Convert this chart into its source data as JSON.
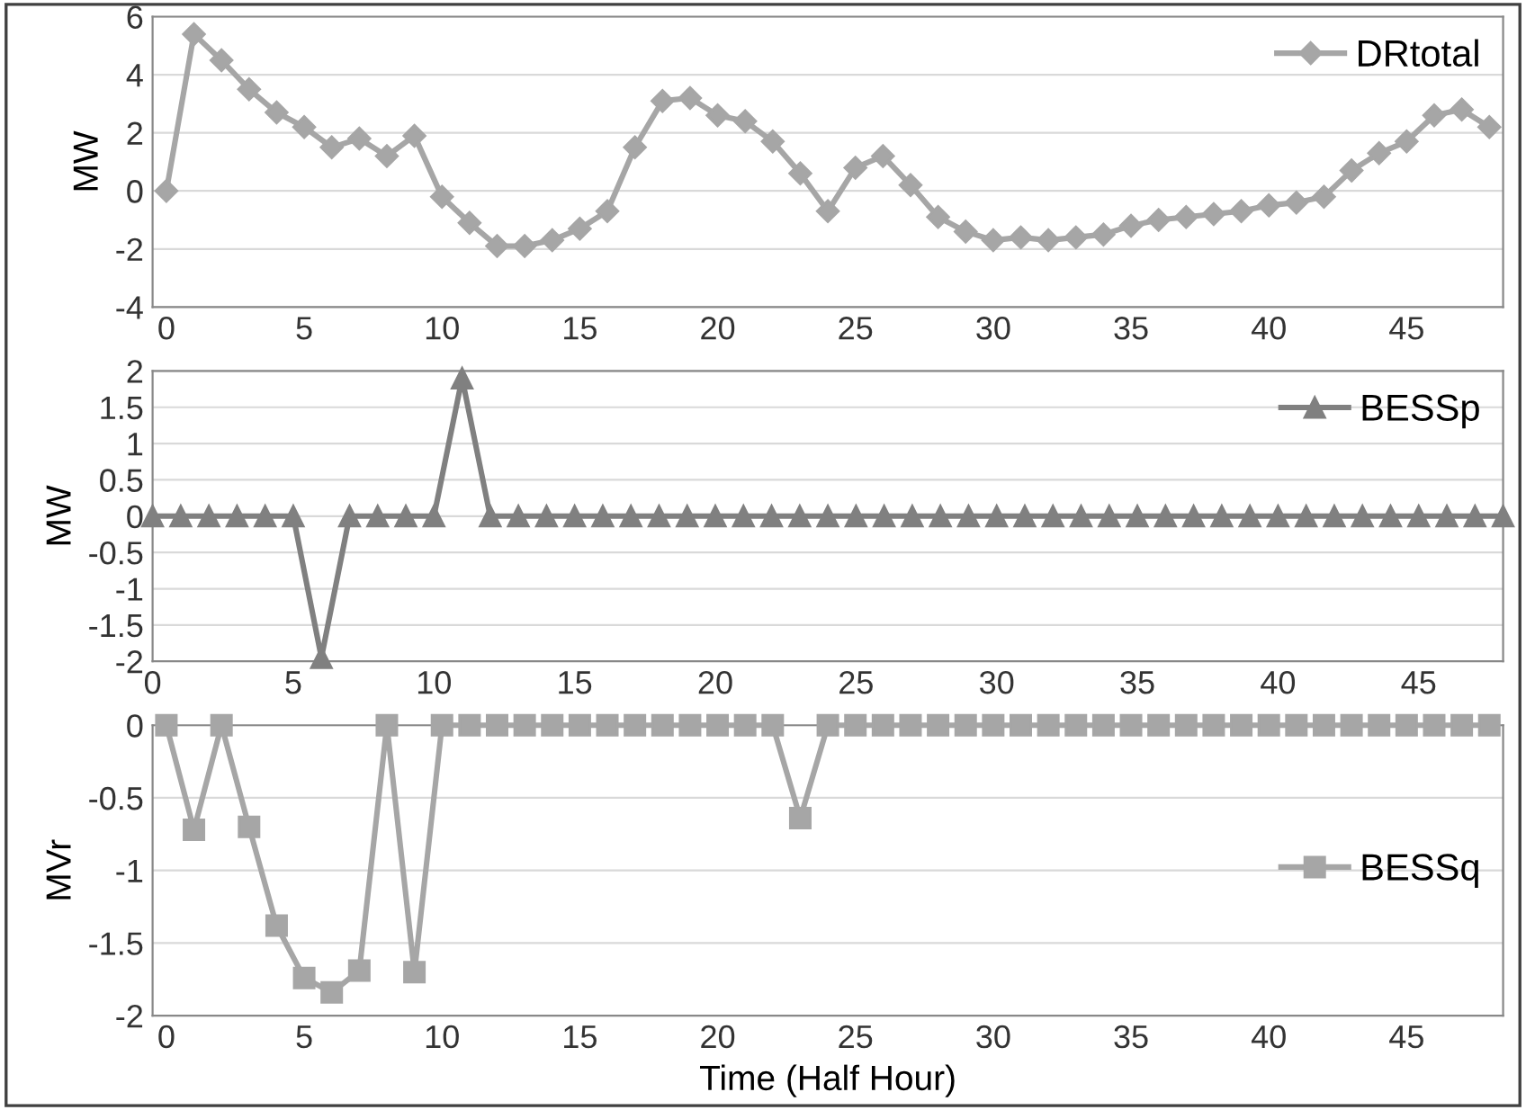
{
  "chart_data": [
    {
      "type": "line",
      "ylabel": "MW",
      "x": [
        0,
        1,
        2,
        3,
        4,
        5,
        6,
        7,
        8,
        9,
        10,
        11,
        12,
        13,
        14,
        15,
        16,
        17,
        18,
        19,
        20,
        21,
        22,
        23,
        24,
        25,
        26,
        27,
        28,
        29,
        30,
        31,
        32,
        33,
        34,
        35,
        36,
        37,
        38,
        39,
        40,
        41,
        42,
        43,
        44,
        45,
        46,
        47,
        48
      ],
      "series": [
        {
          "name": "DRtotal",
          "color": "#a6a6a6",
          "marker": "diamond",
          "values": [
            0,
            5.4,
            4.5,
            3.5,
            2.7,
            2.2,
            1.5,
            1.8,
            1.2,
            1.9,
            -0.2,
            -1.1,
            -1.9,
            -1.9,
            -1.7,
            -1.3,
            -0.7,
            1.5,
            3.1,
            3.2,
            2.6,
            2.4,
            1.7,
            0.6,
            -0.7,
            0.8,
            1.2,
            0.2,
            -0.9,
            -1.4,
            -1.7,
            -1.6,
            -1.7,
            -1.6,
            -1.5,
            -1.2,
            -1.0,
            -0.9,
            -0.8,
            -0.7,
            -0.5,
            -0.4,
            -0.2,
            0.7,
            1.3,
            1.7,
            2.6,
            2.8,
            2.2
          ]
        }
      ],
      "xlim": [
        -0.5,
        48.5
      ],
      "xticks": [
        0,
        5,
        10,
        15,
        20,
        25,
        30,
        35,
        40,
        45
      ],
      "ylim": [
        -4,
        6
      ],
      "yticks": [
        -4,
        -2,
        0,
        2,
        4,
        6
      ],
      "grid": "y",
      "legend": "top right"
    },
    {
      "type": "line",
      "ylabel": "MW",
      "x": [
        0,
        1,
        2,
        3,
        4,
        5,
        6,
        7,
        8,
        9,
        10,
        11,
        12,
        13,
        14,
        15,
        16,
        17,
        18,
        19,
        20,
        21,
        22,
        23,
        24,
        25,
        26,
        27,
        28,
        29,
        30,
        31,
        32,
        33,
        34,
        35,
        36,
        37,
        38,
        39,
        40,
        41,
        42,
        43,
        44,
        45,
        46,
        47,
        48
      ],
      "series": [
        {
          "name": "BESSp",
          "color": "#808080",
          "marker": "triangle",
          "values": [
            0,
            0,
            0,
            0,
            0,
            0,
            -1.95,
            0,
            0,
            0,
            0,
            1.9,
            0,
            0,
            0,
            0,
            0,
            0,
            0,
            0,
            0,
            0,
            0,
            0,
            0,
            0,
            0,
            0,
            0,
            0,
            0,
            0,
            0,
            0,
            0,
            0,
            0,
            0,
            0,
            0,
            0,
            0,
            0,
            0,
            0,
            0,
            0,
            0,
            0
          ]
        }
      ],
      "xlim": [
        0,
        48
      ],
      "xticks": [
        0,
        5,
        10,
        15,
        20,
        25,
        30,
        35,
        40,
        45
      ],
      "ylim": [
        -2,
        2
      ],
      "yticks": [
        -2,
        -1.5,
        -1,
        -0.5,
        0,
        0.5,
        1,
        1.5,
        2
      ],
      "grid": "y",
      "legend": "top right"
    },
    {
      "type": "line",
      "ylabel": "MVr",
      "xlabel": "Time (Half Hour)",
      "x": [
        0,
        1,
        2,
        3,
        4,
        5,
        6,
        7,
        8,
        9,
        10,
        11,
        12,
        13,
        14,
        15,
        16,
        17,
        18,
        19,
        20,
        21,
        22,
        23,
        24,
        25,
        26,
        27,
        28,
        29,
        30,
        31,
        32,
        33,
        34,
        35,
        36,
        37,
        38,
        39,
        40,
        41,
        42,
        43,
        44,
        45,
        46,
        47,
        48
      ],
      "series": [
        {
          "name": "BESSq",
          "color": "#a6a6a6",
          "marker": "square",
          "values": [
            0,
            -0.72,
            0,
            -0.7,
            -1.38,
            -1.74,
            -1.84,
            -1.69,
            0,
            -1.7,
            0,
            0,
            0,
            0,
            0,
            0,
            0,
            0,
            0,
            0,
            0,
            0,
            0,
            -0.64,
            0,
            0,
            0,
            0,
            0,
            0,
            0,
            0,
            0,
            0,
            0,
            0,
            0,
            0,
            0,
            0,
            0,
            0,
            0,
            0,
            0,
            0,
            0,
            0,
            0
          ]
        }
      ],
      "xlim": [
        -0.5,
        48.5
      ],
      "xticks": [
        0,
        5,
        10,
        15,
        20,
        25,
        30,
        35,
        40,
        45
      ],
      "ylim": [
        -2,
        0
      ],
      "yticks": [
        -2,
        -1.5,
        -1,
        -0.5,
        0
      ],
      "grid": "y",
      "legend": "right"
    }
  ]
}
